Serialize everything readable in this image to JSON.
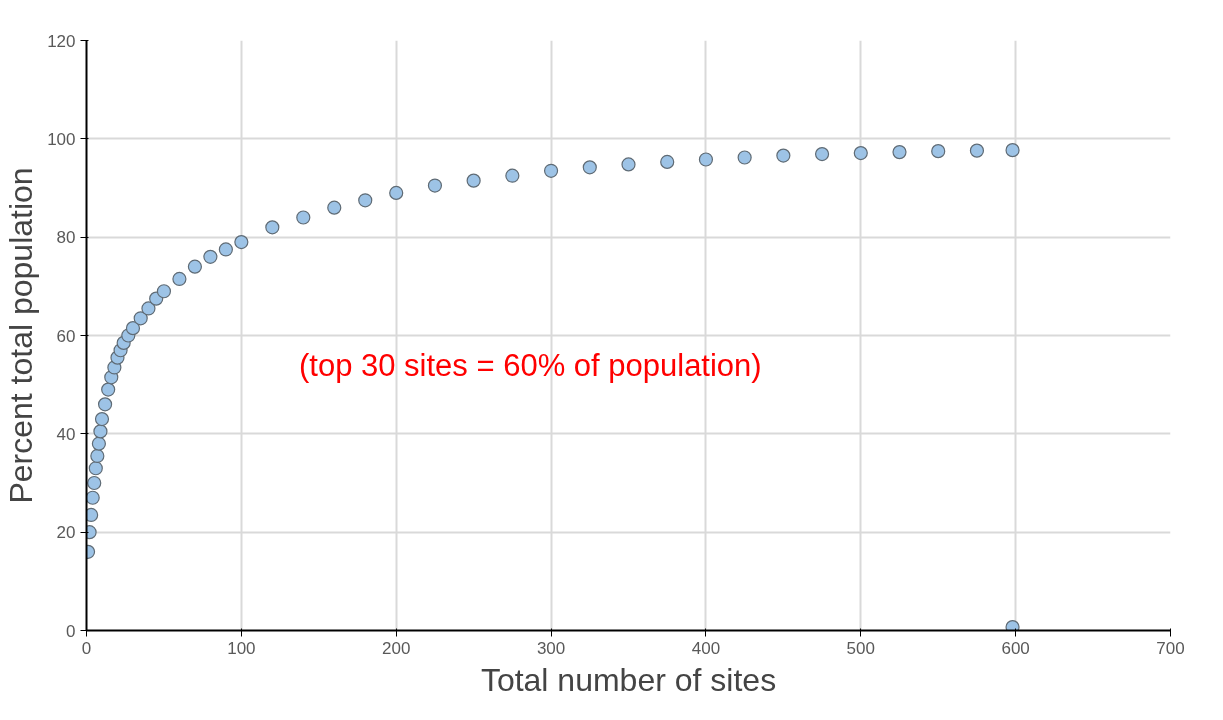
{
  "chart_data": {
    "type": "scatter",
    "xlabel": "Total number of sites",
    "ylabel": "Percent total population",
    "annotations": [
      "(top 30 sites = 60% of population)"
    ],
    "x": [
      1,
      2,
      3,
      4,
      5,
      6,
      7,
      8,
      9,
      10,
      12,
      14,
      16,
      18,
      20,
      22,
      24,
      27,
      30,
      35,
      40,
      45,
      50,
      60,
      70,
      80,
      90,
      100,
      120,
      140,
      160,
      180,
      200,
      225,
      250,
      275,
      300,
      325,
      350,
      375,
      400,
      425,
      450,
      475,
      500,
      525,
      550,
      575,
      598,
      598
    ],
    "series": [
      {
        "color": "#9dc3e6",
        "values": [
          16,
          20,
          23.5,
          27,
          30,
          33,
          35.5,
          38,
          40.5,
          43,
          46,
          49,
          51.5,
          53.5,
          55.5,
          57,
          58.5,
          60,
          61.5,
          63.5,
          65.5,
          67.5,
          69,
          71.5,
          74,
          76,
          77.5,
          79,
          82,
          84,
          86,
          87.5,
          89,
          90.5,
          91.5,
          92.5,
          93.5,
          94.2,
          94.8,
          95.3,
          95.8,
          96.2,
          96.6,
          96.9,
          97.1,
          97.3,
          97.5,
          97.6,
          97.7,
          0.7
        ]
      }
    ],
    "xlim": [
      0,
      700
    ],
    "ylim": [
      0,
      120
    ],
    "xticks": [
      0,
      100,
      200,
      300,
      400,
      500,
      600,
      700
    ],
    "yticks": [
      0,
      20,
      40,
      60,
      80,
      100,
      120
    ],
    "grid": true,
    "marker": "circle"
  }
}
